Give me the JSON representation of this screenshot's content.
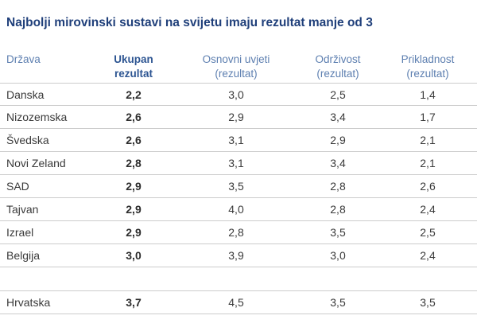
{
  "title": "Najbolji mirovinski sustavi na svijetu imaju rezultat manje od 3",
  "headers": {
    "country": "Država",
    "total_line1": "Ukupan",
    "total_line2": "rezultat",
    "basic_line1": "Osnovni uvjeti",
    "basic_line2": "(rezultat)",
    "sustain_line1": "Održivost",
    "sustain_line2": "(rezultat)",
    "appl_line1": "Prikladnost",
    "appl_line2": "(rezultat)"
  },
  "rows": [
    {
      "country": "Danska",
      "total": "2,2",
      "basic": "3,0",
      "sustain": "2,5",
      "appl": "1,4"
    },
    {
      "country": "Nizozemska",
      "total": "2,6",
      "basic": "2,9",
      "sustain": "3,4",
      "appl": "1,7"
    },
    {
      "country": "Švedska",
      "total": "2,6",
      "basic": "3,1",
      "sustain": "2,9",
      "appl": "2,1"
    },
    {
      "country": "Novi Zeland",
      "total": "2,8",
      "basic": "3,1",
      "sustain": "3,4",
      "appl": "2,1"
    },
    {
      "country": "SAD",
      "total": "2,9",
      "basic": "3,5",
      "sustain": "2,8",
      "appl": "2,6"
    },
    {
      "country": "Tajvan",
      "total": "2,9",
      "basic": "4,0",
      "sustain": "2,8",
      "appl": "2,4"
    },
    {
      "country": "Izrael",
      "total": "2,9",
      "basic": "2,8",
      "sustain": "3,5",
      "appl": "2,5"
    },
    {
      "country": "Belgija",
      "total": "3,0",
      "basic": "3,9",
      "sustain": "3,0",
      "appl": "2,4"
    }
  ],
  "highlight_row": {
    "country": "Hrvatska",
    "total": "3,7",
    "basic": "4,5",
    "sustain": "3,5",
    "appl": "3,5"
  },
  "colors": {
    "title": "#1f3f7a",
    "header": "#5d7fb0",
    "total_header": "#2d5592",
    "rule": "#cccccc"
  }
}
